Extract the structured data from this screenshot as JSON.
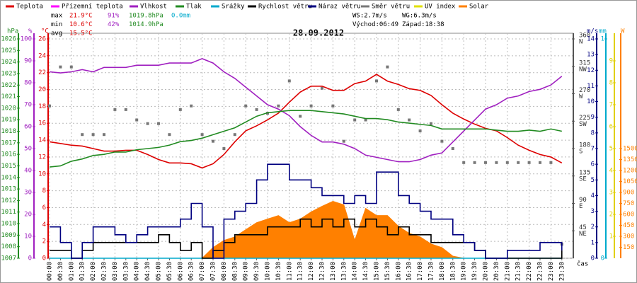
{
  "chart_data": {
    "type": "line",
    "title": "28.09.2012",
    "xlabel": "čas",
    "stats": [
      {
        "label": "max",
        "temp": "21.9°C",
        "hum": "91%",
        "press": "1019.8hPa",
        "rain": "0.0mm"
      },
      {
        "label": "min",
        "temp": "10.6°C",
        "hum": "42%",
        "press": "1014.9hPa"
      },
      {
        "label": "avg",
        "temp": "15.5°C"
      }
    ],
    "wind_info": [
      [
        "WS:2.7m/s",
        "WG:6.3m/s"
      ],
      [
        "Východ:06:49",
        "Západ:18:38"
      ]
    ],
    "grid": true,
    "categories": [
      "00:00",
      "00:30",
      "01:00",
      "01:30",
      "02:00",
      "02:30",
      "03:00",
      "03:30",
      "04:00",
      "04:30",
      "05:00",
      "05:30",
      "06:00",
      "06:30",
      "07:00",
      "07:30",
      "08:00",
      "08:30",
      "09:00",
      "09:30",
      "10:00",
      "10:30",
      "11:00",
      "11:30",
      "12:00",
      "12:30",
      "13:00",
      "13:30",
      "14:00",
      "14:30",
      "15:00",
      "15:30",
      "16:00",
      "16:30",
      "17:00",
      "17:30",
      "18:00",
      "18:30",
      "19:00",
      "19:30",
      "20:00",
      "20:30",
      "21:00",
      "21:30",
      "22:00",
      "22:30",
      "23:00",
      "23:30"
    ],
    "axes": {
      "press": {
        "title": "hPa",
        "color": "#228b22",
        "ylim": [
          1007,
          1026
        ],
        "yticks": [
          1007,
          1008,
          1009,
          1010,
          1011,
          1012,
          1013,
          1014,
          1015,
          1016,
          1017,
          1018,
          1019,
          1020,
          1021,
          1022,
          1023,
          1024,
          1025,
          1026
        ]
      },
      "hum": {
        "title": "%",
        "color": "#a020c0",
        "ylim": [
          0,
          100
        ],
        "yticks": [
          0,
          10,
          20,
          30,
          40,
          50,
          60,
          70,
          80,
          90,
          100
        ]
      },
      "temp": {
        "title": "°C",
        "color": "#dd0000",
        "ylim": [
          0,
          26
        ],
        "yticks": [
          0,
          2,
          4,
          6,
          8,
          10,
          12,
          14,
          16,
          18,
          20,
          22,
          24,
          26
        ]
      },
      "dir": {
        "title": "",
        "color": "#555555",
        "ylim": [
          0,
          360
        ],
        "yticks": [
          {
            "value": 45,
            "label": "NE"
          },
          {
            "value": 90,
            "label": "E"
          },
          {
            "value": 135,
            "label": "SE"
          },
          {
            "value": 180,
            "label": "S"
          },
          {
            "value": 225,
            "label": "SW"
          },
          {
            "value": 270,
            "label": "W"
          },
          {
            "value": 315,
            "label": "NW"
          },
          {
            "value": 360,
            "label": "N"
          }
        ]
      },
      "wind": {
        "title": "m/s",
        "color": "#000080",
        "ylim": [
          0,
          14
        ],
        "yticks": [
          0,
          1,
          2,
          3,
          4,
          5,
          6,
          7,
          8,
          9,
          10,
          11,
          12,
          13,
          14
        ]
      },
      "rain": {
        "title": "mm",
        "color": "#00aacc",
        "ylim": [
          0,
          1
        ],
        "yticks": [
          0,
          1
        ]
      },
      "uv": {
        "title": "",
        "color": "#e0d000",
        "ylim": [
          0,
          10
        ],
        "yticks": [
          1,
          2,
          3,
          4,
          5,
          6,
          7,
          8,
          9
        ]
      },
      "solar": {
        "title": "W",
        "color": "#ff8000",
        "ylim": [
          0,
          3000
        ],
        "yticks": [
          150,
          300,
          450,
          600,
          750,
          900,
          1050,
          1200,
          1350,
          1500
        ]
      }
    },
    "series": [
      {
        "name": "Teplota",
        "color": "#dd0000",
        "axis": "temp",
        "style": "line",
        "values": [
          13.8,
          13.6,
          13.4,
          13.3,
          13.0,
          12.7,
          12.7,
          12.8,
          12.8,
          12.3,
          11.7,
          11.3,
          11.3,
          11.2,
          10.7,
          11.2,
          12.3,
          13.8,
          15.1,
          15.7,
          16.4,
          17.2,
          18.5,
          19.7,
          20.4,
          20.4,
          19.9,
          19.9,
          20.7,
          21.0,
          21.8,
          21.0,
          20.6,
          20.1,
          19.9,
          19.3,
          18.2,
          17.2,
          16.5,
          15.9,
          15.4,
          15.1,
          14.3,
          13.4,
          12.8,
          12.3,
          12.0,
          11.3
        ]
      },
      {
        "name": "Přízemní teplota",
        "color": "#ff00ff",
        "axis": "temp",
        "style": "line",
        "values": [
          null,
          null,
          null,
          null,
          null,
          null,
          null,
          null,
          null,
          null,
          null,
          null,
          null,
          null,
          null,
          null,
          null,
          null,
          null,
          null,
          null,
          null,
          null,
          null,
          null,
          null,
          null,
          null,
          null,
          null,
          null,
          null,
          null,
          null,
          null,
          null,
          null,
          null,
          null,
          null,
          null,
          null,
          null,
          null,
          null,
          null,
          null,
          null
        ]
      },
      {
        "name": "Vlhkost",
        "color": "#a020c0",
        "axis": "hum",
        "style": "line",
        "values": [
          85,
          84.5,
          85,
          86,
          85,
          87,
          87,
          87,
          88,
          88,
          88,
          89,
          89,
          89,
          91,
          89,
          85,
          82,
          78,
          74,
          70,
          68,
          65,
          60,
          56,
          53,
          53,
          52,
          50,
          47,
          46,
          45,
          44,
          44,
          45,
          47,
          48,
          53,
          58,
          63,
          68,
          70,
          73,
          74,
          76,
          77,
          79,
          83
        ]
      },
      {
        "name": "Tlak",
        "color": "#228b22",
        "axis": "press",
        "style": "line",
        "values": [
          1014.9,
          1015.0,
          1015.4,
          1015.6,
          1015.9,
          1016.0,
          1016.2,
          1016.2,
          1016.4,
          1016.5,
          1016.6,
          1016.8,
          1017.1,
          1017.2,
          1017.4,
          1017.7,
          1018.0,
          1018.3,
          1018.8,
          1019.3,
          1019.6,
          1019.7,
          1019.8,
          1019.8,
          1019.8,
          1019.7,
          1019.6,
          1019.5,
          1019.3,
          1019.1,
          1019.1,
          1019.0,
          1018.8,
          1018.7,
          1018.6,
          1018.5,
          1018.2,
          1018.2,
          1018.2,
          1018.2,
          1018.2,
          1018.1,
          1018.0,
          1018.0,
          1018.1,
          1018.0,
          1018.2,
          1018.0
        ]
      },
      {
        "name": "Srážky",
        "color": "#00aacc",
        "axis": "rain",
        "style": "line",
        "values": [
          0,
          0,
          0,
          0,
          0,
          0,
          0,
          0,
          0,
          0,
          0,
          0,
          0,
          0,
          0,
          0,
          0,
          0,
          0,
          0,
          0,
          0,
          0,
          0,
          0,
          0,
          0,
          0,
          0,
          0,
          0,
          0,
          0,
          0,
          0,
          0,
          0,
          0,
          0,
          0,
          0,
          0,
          0,
          0,
          0,
          0,
          0,
          0
        ]
      },
      {
        "name": "Rychlost větru",
        "color": "#000000",
        "axis": "wind",
        "style": "step",
        "values": [
          0.5,
          0.5,
          0,
          0.5,
          1,
          1,
          1,
          1,
          1,
          1,
          1.5,
          1,
          0.5,
          1,
          0,
          0.5,
          1,
          1.5,
          1.5,
          1.5,
          2,
          2,
          2,
          2.5,
          2,
          2.5,
          2,
          2.5,
          2,
          2.5,
          2,
          1.5,
          2,
          1.5,
          1.5,
          1,
          1,
          1,
          1,
          0.5,
          0,
          0,
          0,
          0,
          0,
          0,
          0,
          0.5
        ]
      },
      {
        "name": "Náraz větru",
        "color": "#000080",
        "axis": "wind",
        "style": "step",
        "values": [
          2,
          1,
          0,
          1,
          2,
          2,
          1.5,
          1,
          1.5,
          2,
          2,
          2,
          2.5,
          3.5,
          2,
          0,
          2.5,
          3,
          3.5,
          5,
          6,
          6,
          5,
          5,
          4.5,
          4,
          4,
          3.5,
          4,
          3.5,
          5.5,
          5.5,
          4,
          3.5,
          3,
          2.5,
          2.5,
          1.5,
          1,
          0.5,
          0,
          0,
          0.5,
          0.5,
          0.5,
          1,
          1,
          0.5
        ]
      },
      {
        "name": "Směr větru",
        "color": "#777777",
        "axis": "dir",
        "style": "markers",
        "values": [
          250,
          314,
          314,
          203,
          203,
          203,
          244,
          244,
          227,
          221,
          221,
          203,
          244,
          250,
          203,
          192,
          180,
          203,
          250,
          244,
          238,
          250,
          291,
          233,
          250,
          279,
          250,
          192,
          227,
          227,
          291,
          314,
          244,
          227,
          209,
          221,
          192,
          180,
          157,
          157,
          157,
          157,
          157,
          157,
          157,
          157,
          157,
          23
        ]
      },
      {
        "name": "UV index",
        "color": "#e0e000",
        "axis": "uv",
        "style": "line",
        "values": [
          null,
          null,
          null,
          null,
          null,
          null,
          null,
          null,
          null,
          null,
          null,
          null,
          null,
          null,
          null,
          null,
          null,
          null,
          null,
          null,
          null,
          null,
          null,
          null,
          null,
          null,
          null,
          null,
          null,
          null,
          null,
          null,
          null,
          null,
          null,
          null,
          null,
          null,
          null,
          null,
          null,
          null,
          null,
          null,
          null,
          null,
          null,
          null
        ]
      },
      {
        "name": "Solar",
        "color": "#ff8000",
        "axis": "solar",
        "style": "area",
        "values": [
          0,
          0,
          0,
          0,
          0,
          0,
          0,
          0,
          0,
          0,
          0,
          0,
          0,
          0,
          0,
          146,
          243,
          292,
          390,
          487,
          536,
          584,
          487,
          536,
          633,
          711,
          779,
          730,
          243,
          682,
          584,
          584,
          438,
          341,
          292,
          195,
          146,
          29,
          0,
          0,
          0,
          0,
          0,
          0,
          0,
          0,
          0,
          0
        ]
      }
    ]
  }
}
